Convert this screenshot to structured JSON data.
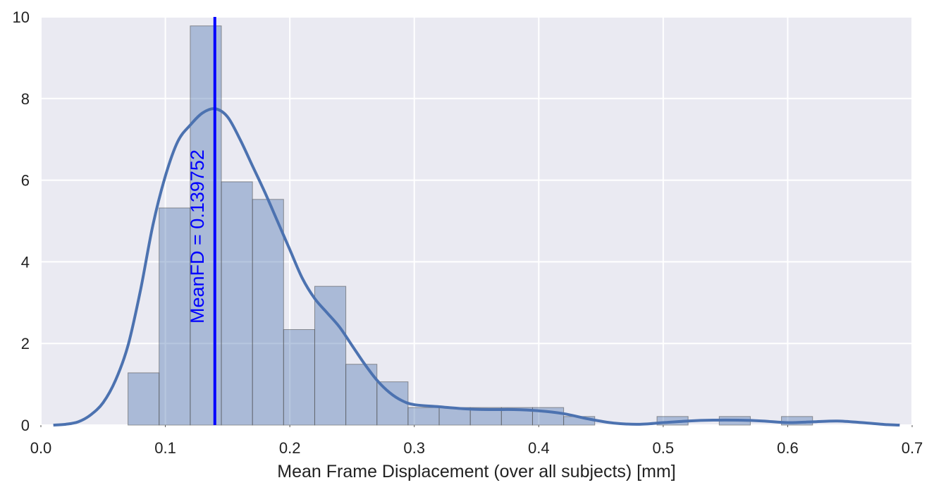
{
  "chart_data": {
    "type": "bar",
    "title": "",
    "xlabel": "Mean Frame Displacement (over all subjects) [mm]",
    "ylabel": "",
    "xlim": [
      0.0,
      0.7
    ],
    "ylim": [
      0,
      10
    ],
    "grid": true,
    "x_ticks": [
      "0.0",
      "0.1",
      "0.2",
      "0.3",
      "0.4",
      "0.5",
      "0.6",
      "0.7"
    ],
    "y_ticks": [
      "0",
      "2",
      "4",
      "6",
      "8",
      "10"
    ],
    "histogram": {
      "bin_edges": [
        0.07,
        0.095,
        0.12,
        0.145,
        0.17,
        0.195,
        0.22,
        0.245,
        0.27,
        0.295,
        0.32,
        0.345,
        0.37,
        0.395,
        0.42,
        0.445,
        0.47,
        0.495,
        0.52,
        0.545,
        0.57,
        0.595,
        0.62,
        0.645
      ],
      "values": [
        1.28,
        5.32,
        9.78,
        5.96,
        5.53,
        2.34,
        3.4,
        1.49,
        1.06,
        0.43,
        0.43,
        0.43,
        0.43,
        0.43,
        0.21,
        0,
        0,
        0.21,
        0,
        0.21,
        0,
        0.21,
        0
      ],
      "color": "#4c72b0"
    },
    "kde": {
      "x": [
        0.01,
        0.02,
        0.03,
        0.04,
        0.05,
        0.06,
        0.07,
        0.08,
        0.09,
        0.1,
        0.11,
        0.12,
        0.13,
        0.14,
        0.15,
        0.16,
        0.17,
        0.18,
        0.19,
        0.2,
        0.21,
        0.22,
        0.23,
        0.24,
        0.25,
        0.26,
        0.27,
        0.28,
        0.29,
        0.3,
        0.32,
        0.34,
        0.36,
        0.38,
        0.4,
        0.42,
        0.44,
        0.46,
        0.48,
        0.5,
        0.52,
        0.54,
        0.56,
        0.58,
        0.6,
        0.62,
        0.64,
        0.66,
        0.68,
        0.69
      ],
      "y": [
        0,
        0.02,
        0.08,
        0.25,
        0.55,
        1.1,
        1.95,
        3.3,
        4.9,
        6.1,
        6.95,
        7.35,
        7.65,
        7.75,
        7.55,
        7.0,
        6.35,
        5.7,
        5.0,
        4.3,
        3.6,
        3.1,
        2.75,
        2.4,
        1.95,
        1.5,
        1.1,
        0.8,
        0.6,
        0.5,
        0.45,
        0.4,
        0.38,
        0.38,
        0.35,
        0.28,
        0.15,
        0.05,
        0.02,
        0.06,
        0.1,
        0.12,
        0.12,
        0.1,
        0.06,
        0.08,
        0.1,
        0.06,
        0.01,
        0
      ],
      "color": "#4c72b0"
    },
    "mean_line": {
      "x": 0.139752,
      "label": "MeanFD = 0.139752",
      "color": "#0000ff"
    }
  }
}
